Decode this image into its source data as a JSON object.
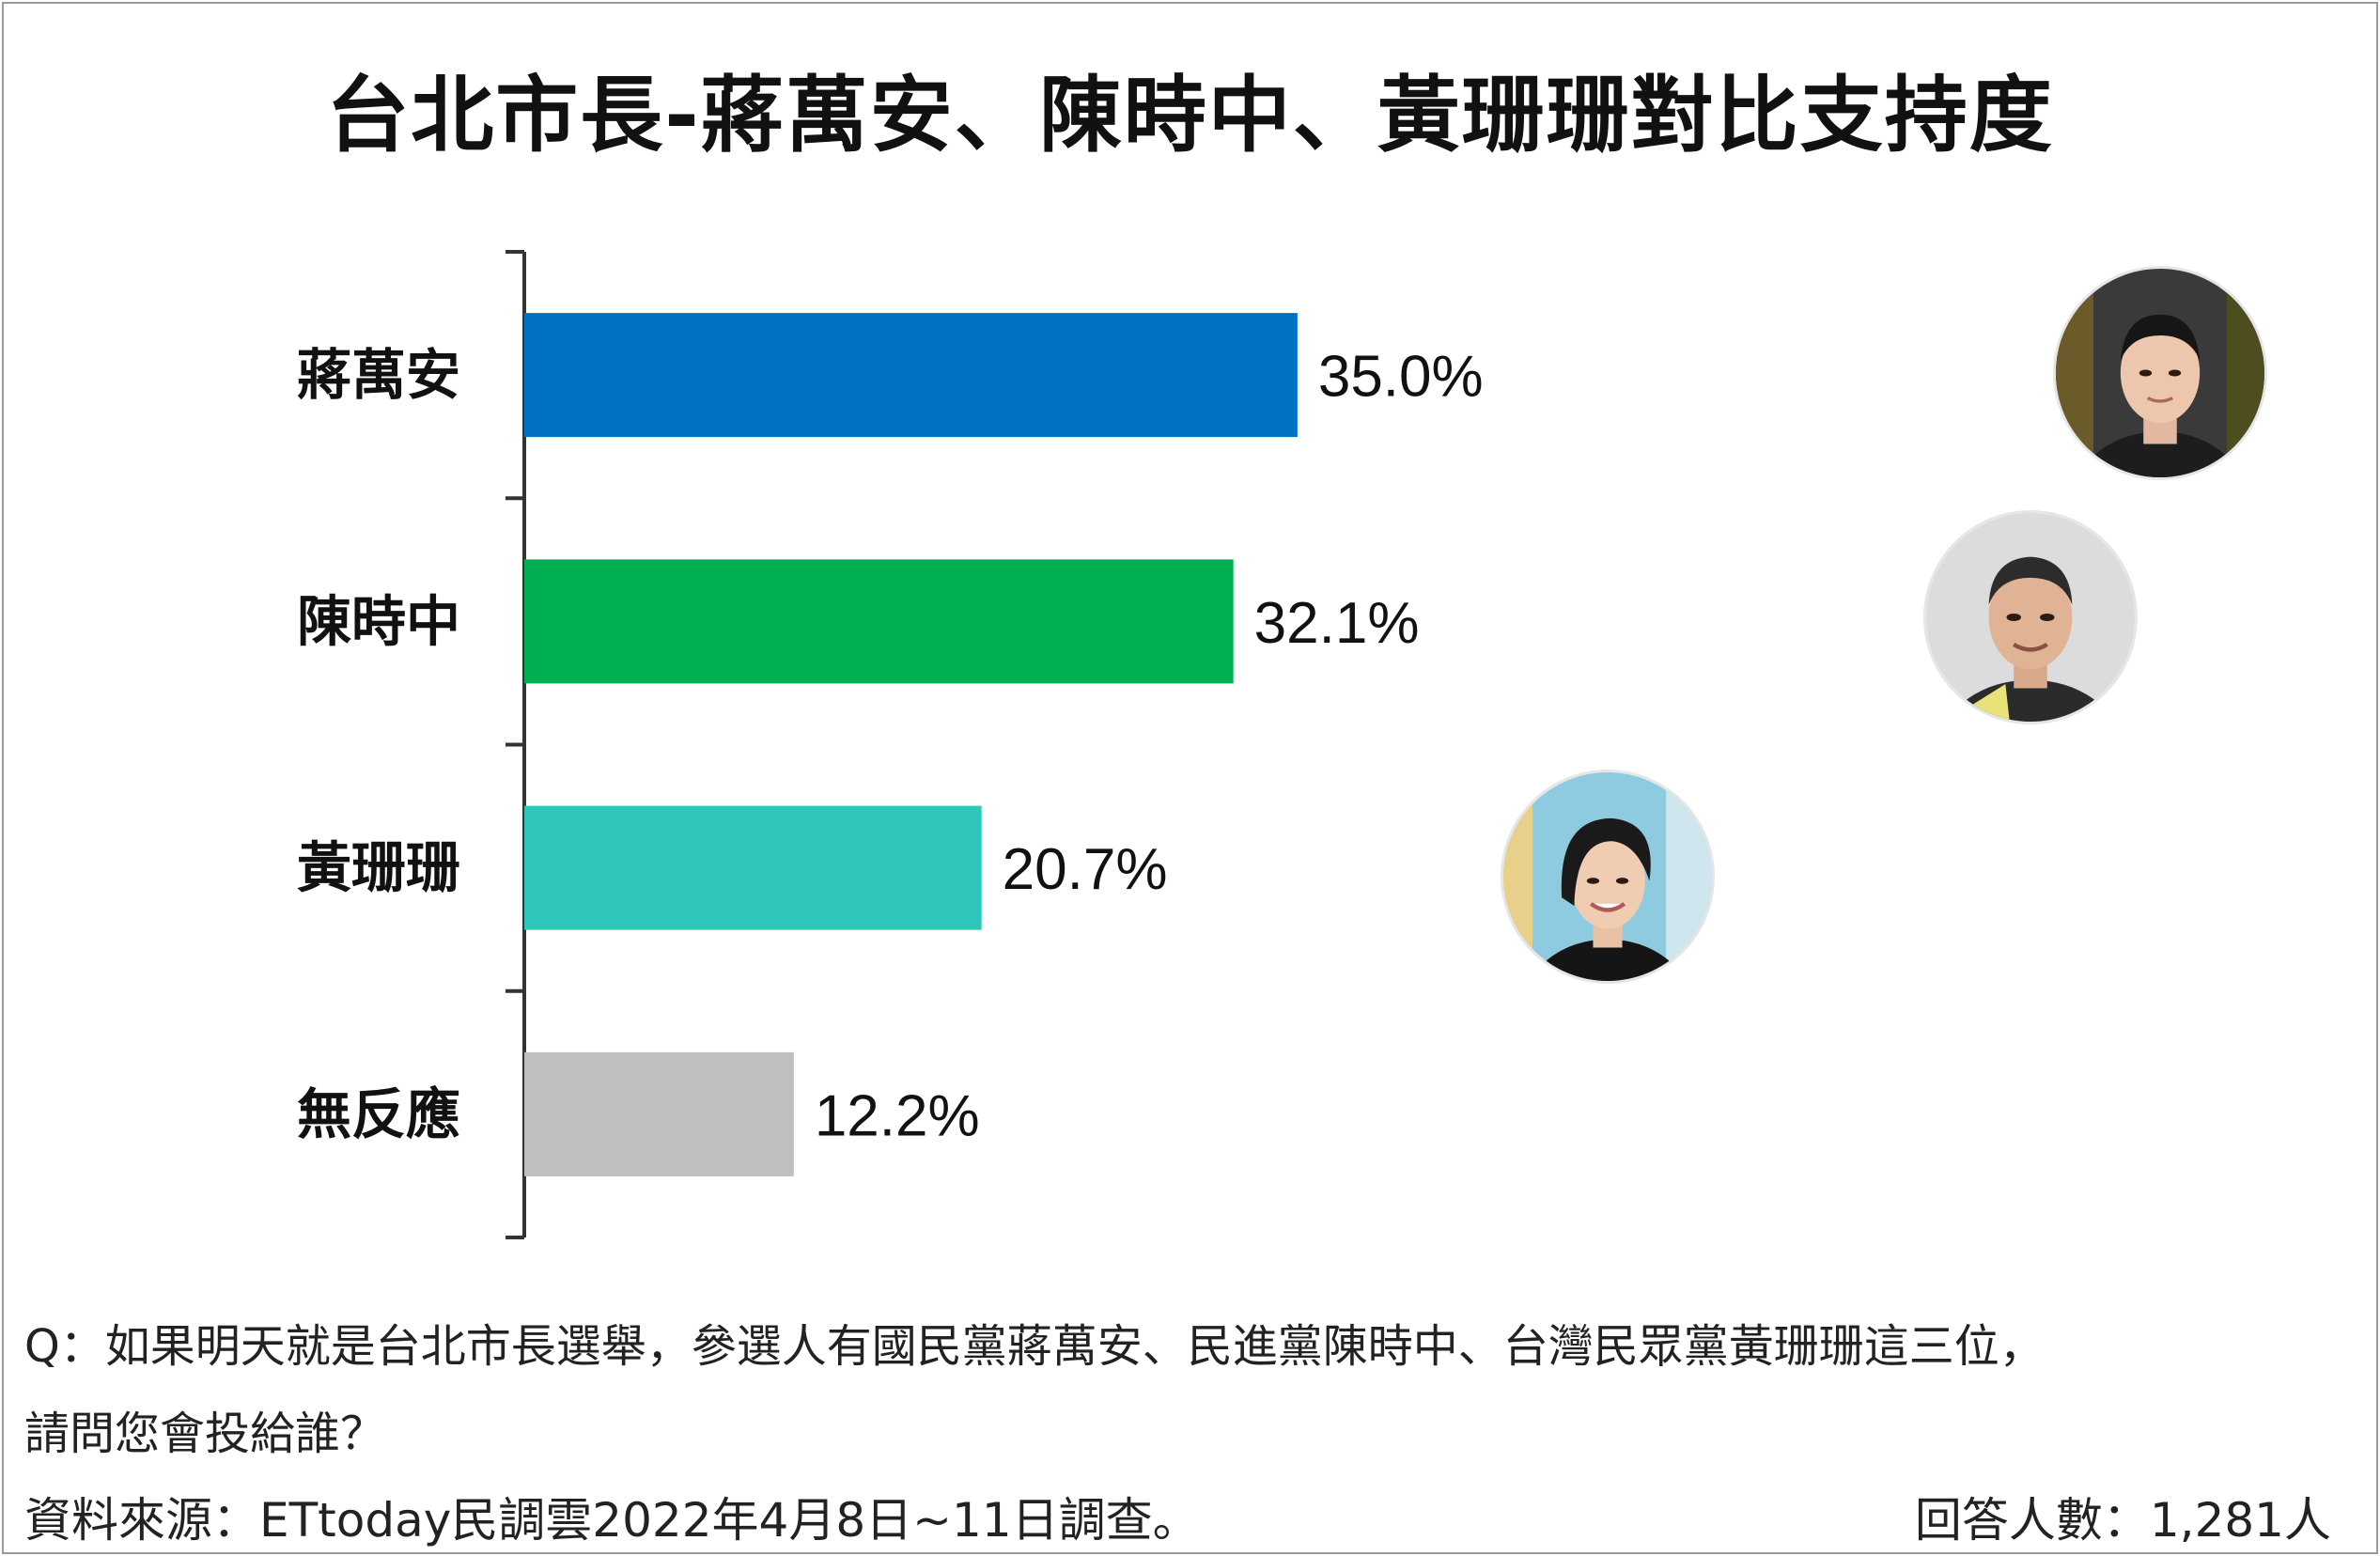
{
  "chart_data": {
    "type": "bar",
    "orientation": "horizontal",
    "title": "台北市長-蔣萬安、陳時中、黃珊珊對比支持度",
    "categories": [
      "蔣萬安",
      "陳時中",
      "黃珊珊",
      "無反應"
    ],
    "values": [
      35.0,
      32.1,
      20.7,
      12.2
    ],
    "value_labels": [
      "35.0%",
      "32.1%",
      "20.7%",
      "12.2%"
    ],
    "colors": [
      "#0070C0",
      "#00B050",
      "#2EC6BA",
      "#BFBFBF"
    ],
    "xlim": [
      0,
      50
    ],
    "grid": false,
    "legend": "none"
  },
  "footnote": {
    "question_line1": "Q：如果明天就是台北市長選舉，參選人有國民黨蔣萬安、民進黨陳時中、台灣民眾黨黃珊珊這三位，",
    "question_line2": "請問您會投給誰？",
    "source": "資料來源：ETtoday民調雲2022年4月8日~11日調查。",
    "respondents": "回答人數：1,281人"
  },
  "avatars": [
    {
      "category": "蔣萬安",
      "icon": "candidate-photo-1"
    },
    {
      "category": "陳時中",
      "icon": "candidate-photo-2"
    },
    {
      "category": "黃珊珊",
      "icon": "candidate-photo-3"
    }
  ]
}
